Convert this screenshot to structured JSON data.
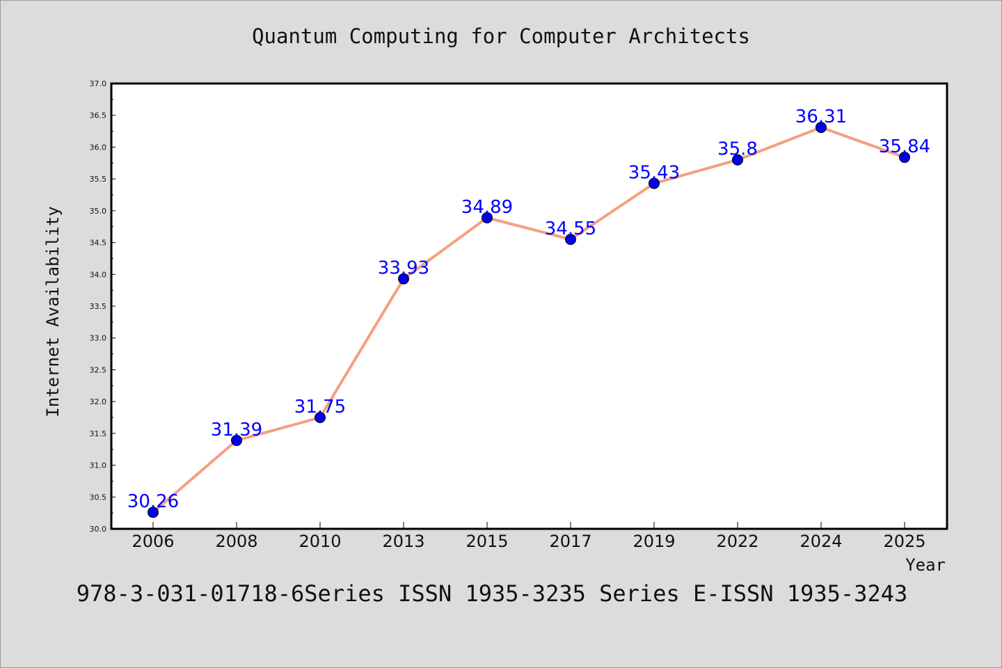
{
  "chart_data": {
    "type": "line",
    "title": "Quantum Computing for Computer Architects",
    "xlabel": "Year",
    "ylabel": "Internet Availability",
    "categories": [
      "2006",
      "2008",
      "2010",
      "2013",
      "2015",
      "2017",
      "2019",
      "2022",
      "2024",
      "2025"
    ],
    "series": [
      {
        "values": [
          30.26,
          31.39,
          31.75,
          33.93,
          34.89,
          34.55,
          35.43,
          35.8,
          36.31,
          35.84
        ],
        "labels": [
          "30.26",
          "31.39",
          "31.75",
          "33.93",
          "34.89",
          "34.55",
          "35.43",
          "35.8",
          "36.31",
          "35.84"
        ]
      }
    ],
    "ylim": [
      30.0,
      37.0
    ],
    "yticks": [
      "30.0",
      "30.5",
      "31.0",
      "31.5",
      "32.0",
      "32.5",
      "33.0",
      "33.5",
      "34.0",
      "34.5",
      "35.0",
      "35.5",
      "36.0",
      "36.5",
      "37.0"
    ],
    "grid": false,
    "line_color": "#f4a07f",
    "marker_color": "#0000ee",
    "label_color": "#0000ff",
    "footer": "978-3-031-01718-6Series ISSN 1935-3235 Series E-ISSN 1935-3243"
  }
}
